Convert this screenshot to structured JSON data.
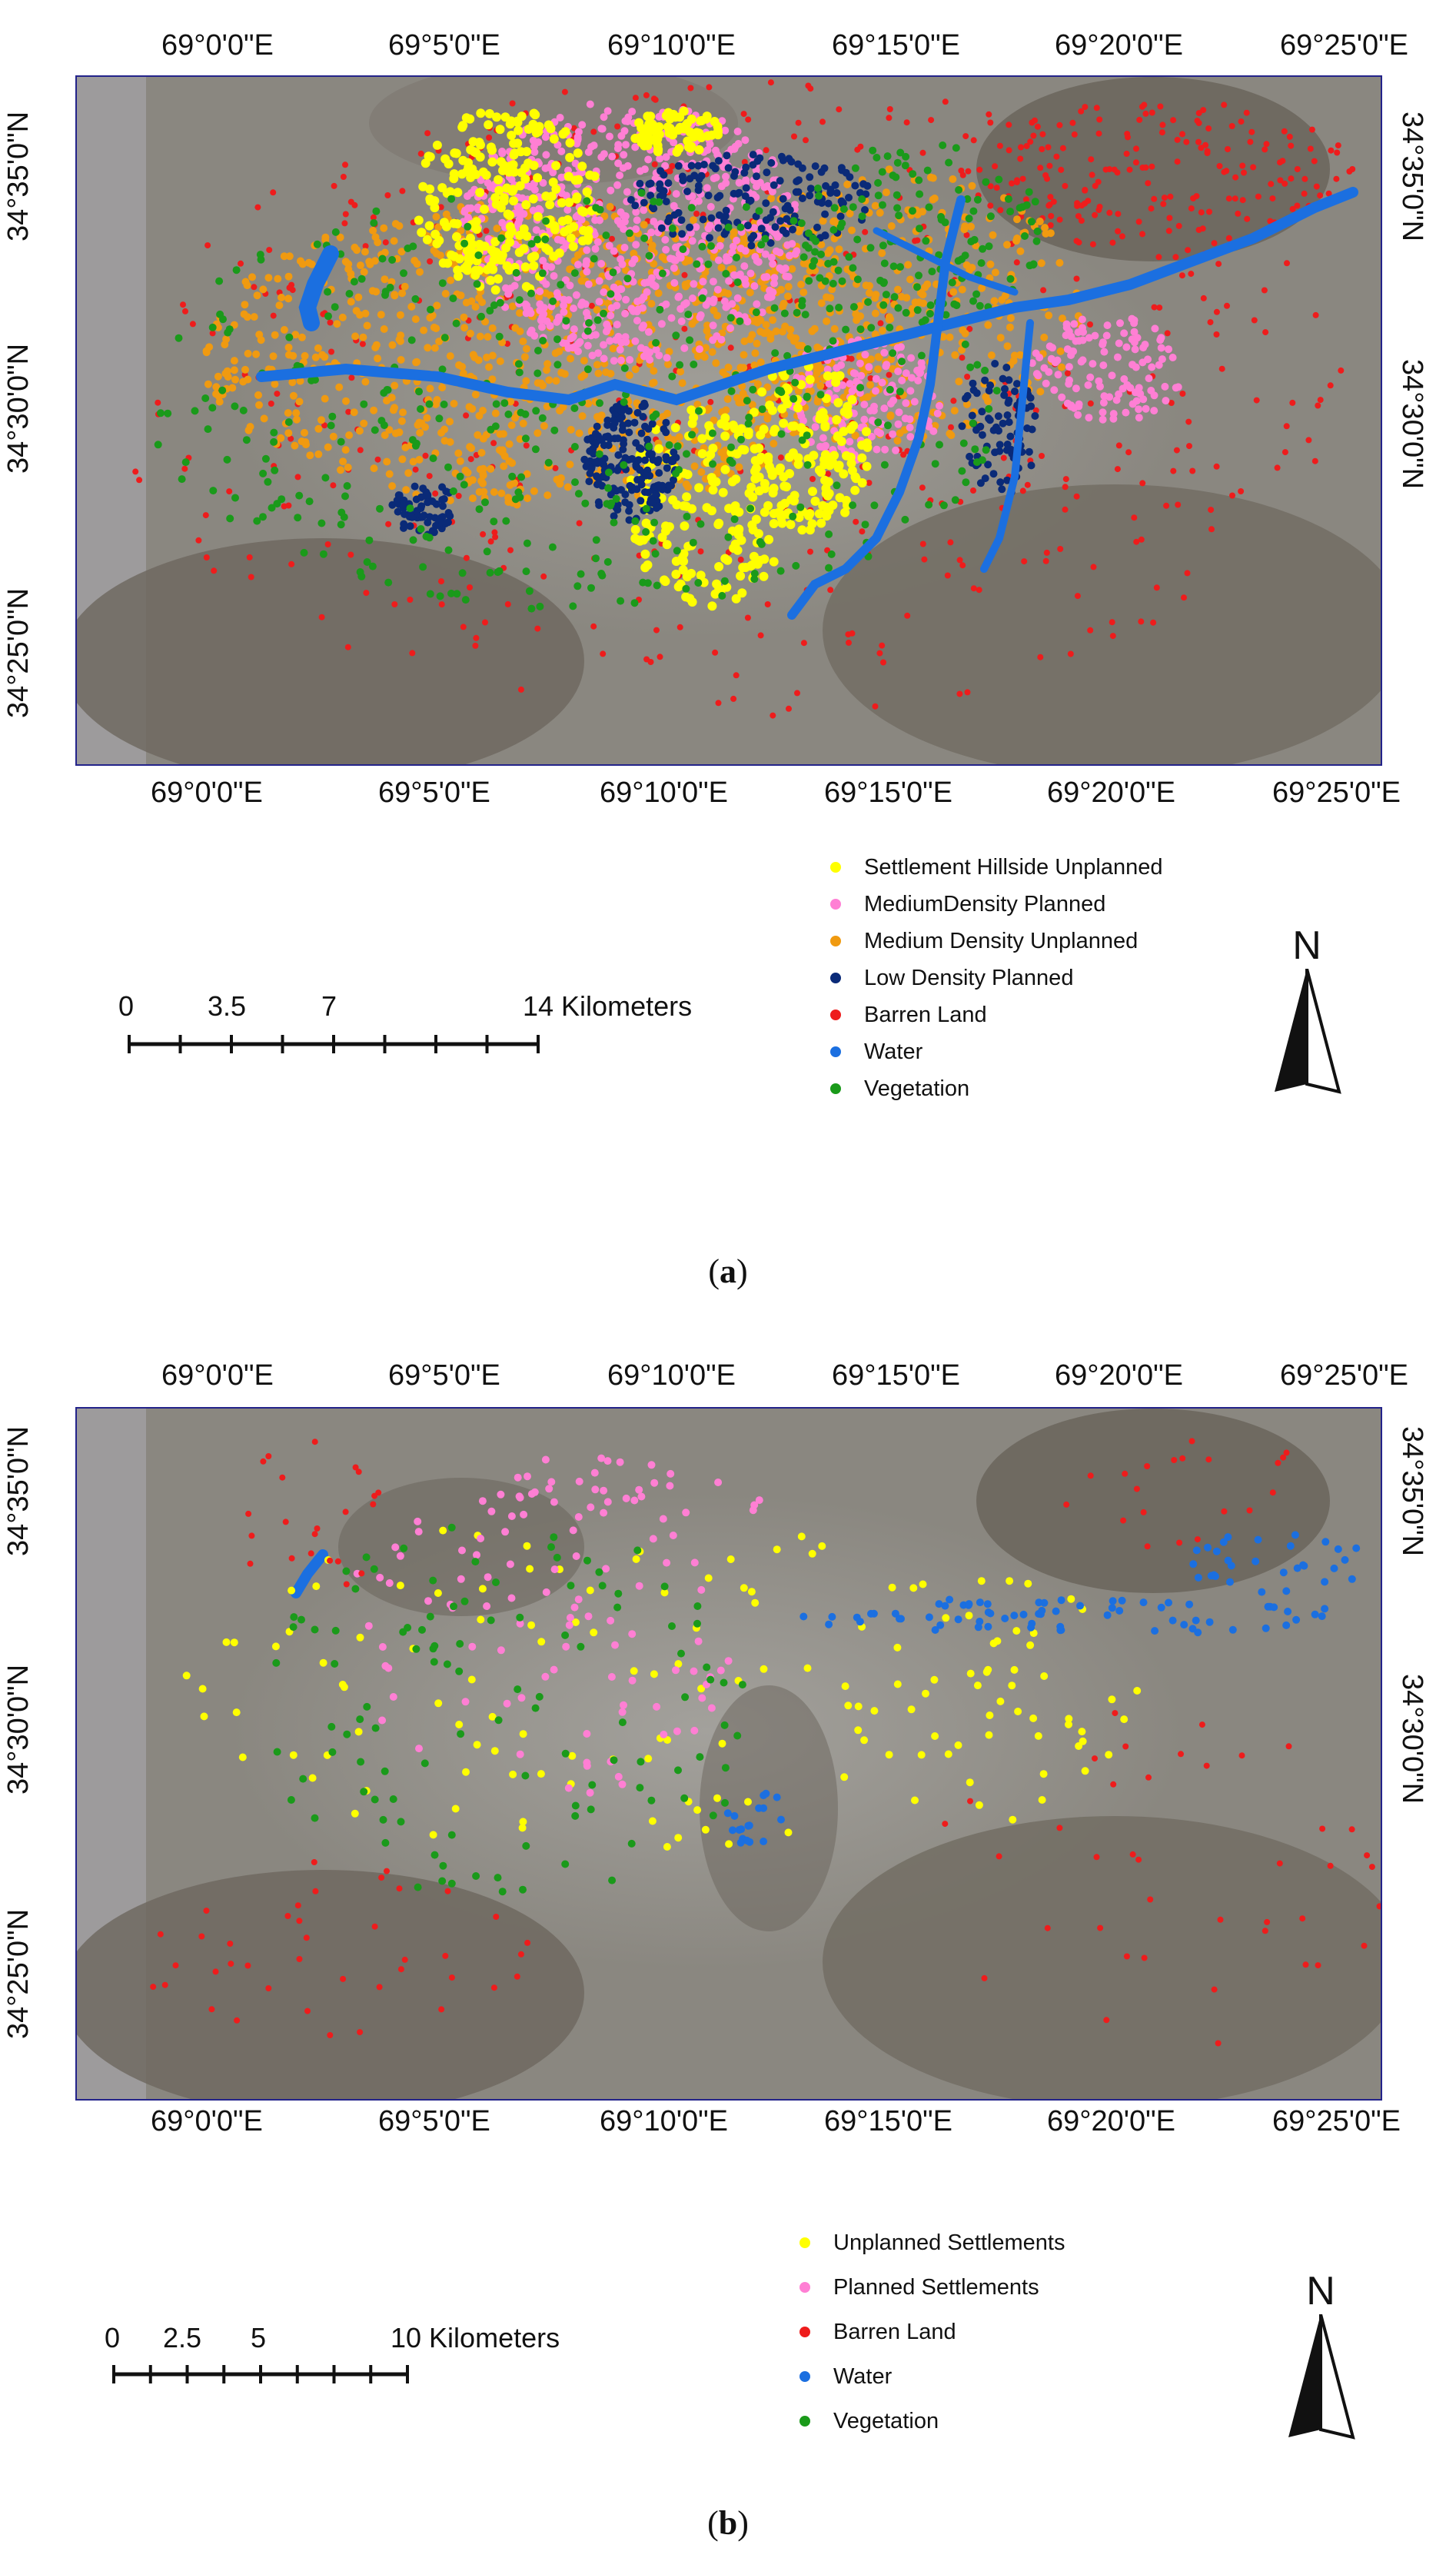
{
  "panel_a": {
    "top_lon_labels": [
      "69°0'0\"E",
      "69°5'0\"E",
      "69°10'0\"E",
      "69°15'0\"E",
      "69°20'0\"E",
      "69°25'0\"E"
    ],
    "bottom_lon_labels": [
      "69°0'0\"E",
      "69°5'0\"E",
      "69°10'0\"E",
      "69°15'0\"E",
      "69°20'0\"E",
      "69°25'0\"E"
    ],
    "left_lat_labels": [
      "34°35'0\"N",
      "34°30'0\"N",
      "34°25'0\"N"
    ],
    "right_lat_labels": [
      "34°35'0\"N",
      "34°30'0\"N"
    ],
    "legend": [
      {
        "label": "Settlement Hillside Unplanned",
        "color": "#ffff00"
      },
      {
        "label": "MediumDensity Planned",
        "color": "#ff7fd4"
      },
      {
        "label": "Medium Density Unplanned",
        "color": "#f09a10"
      },
      {
        "label": "Low Density Planned",
        "color": "#0a2a78"
      },
      {
        "label": "Barren Land",
        "color": "#ee1c1c"
      },
      {
        "label": "Water",
        "color": "#1b6fe0"
      },
      {
        "label": "Vegetation",
        "color": "#1a9a1a"
      }
    ],
    "scale_labels": [
      "0",
      "3.5",
      "7",
      "14 Kilometers"
    ],
    "north": "N",
    "caption_letter": "a"
  },
  "panel_b": {
    "top_lon_labels": [
      "69°0'0\"E",
      "69°5'0\"E",
      "69°10'0\"E",
      "69°15'0\"E",
      "69°20'0\"E",
      "69°25'0\"E"
    ],
    "bottom_lon_labels": [
      "69°0'0\"E",
      "69°5'0\"E",
      "69°10'0\"E",
      "69°15'0\"E",
      "69°20'0\"E",
      "69°25'0\"E"
    ],
    "left_lat_labels": [
      "34°35'0\"N",
      "34°30'0\"N",
      "34°25'0\"N"
    ],
    "right_lat_labels": [
      "34°35'0\"N",
      "34°30'0\"N"
    ],
    "legend": [
      {
        "label": "Unplanned Settlements",
        "color": "#ffff00"
      },
      {
        "label": "Planned Settlements",
        "color": "#ff7fd4"
      },
      {
        "label": "Barren Land",
        "color": "#ee1c1c"
      },
      {
        "label": "Water",
        "color": "#1b6fe0"
      },
      {
        "label": "Vegetation",
        "color": "#1a9a1a"
      }
    ],
    "scale_labels": [
      "0",
      "2.5",
      "5",
      "10 Kilometers"
    ],
    "north": "N",
    "caption_letter": "b"
  },
  "colors": {
    "frame": "#23238a",
    "imagery_base": "#8a8780",
    "imagery_mountain": "#6f6a62",
    "imagery_urban": "#9c9a96"
  }
}
